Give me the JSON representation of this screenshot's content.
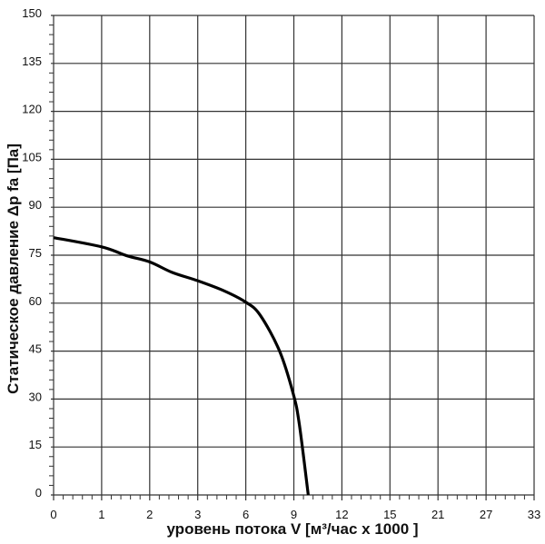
{
  "chart_data": {
    "type": "line",
    "title": "",
    "xlabel": "уровень потока  V [м³/час x 1000 ]",
    "ylabel": "Статическое давление  Δp fa [Па]",
    "x_tick_labels": [
      "0",
      "1",
      "2",
      "3",
      "6",
      "9",
      "12",
      "15",
      "21",
      "27",
      "33"
    ],
    "x_ticks": [
      0,
      1,
      2,
      3,
      6,
      9,
      12,
      15,
      21,
      27,
      33
    ],
    "x_scale": "piecewise (equally spaced labelled ticks)",
    "y_tick_labels": [
      "0",
      "15",
      "30",
      "45",
      "60",
      "75",
      "90",
      "105",
      "120",
      "135",
      "150"
    ],
    "ylim": [
      0,
      150
    ],
    "grid": true,
    "line_color": "#000000",
    "series": [
      {
        "x": [
          0,
          1,
          1.53,
          2,
          2.47,
          3,
          4.62,
          6,
          6.89,
          8.11,
          8.96,
          9.34,
          9.9
        ],
        "y": [
          80.5,
          77.6,
          74.8,
          72.9,
          69.6,
          67,
          63.9,
          60.3,
          56.3,
          45,
          31.7,
          22.2,
          0
        ]
      }
    ]
  }
}
